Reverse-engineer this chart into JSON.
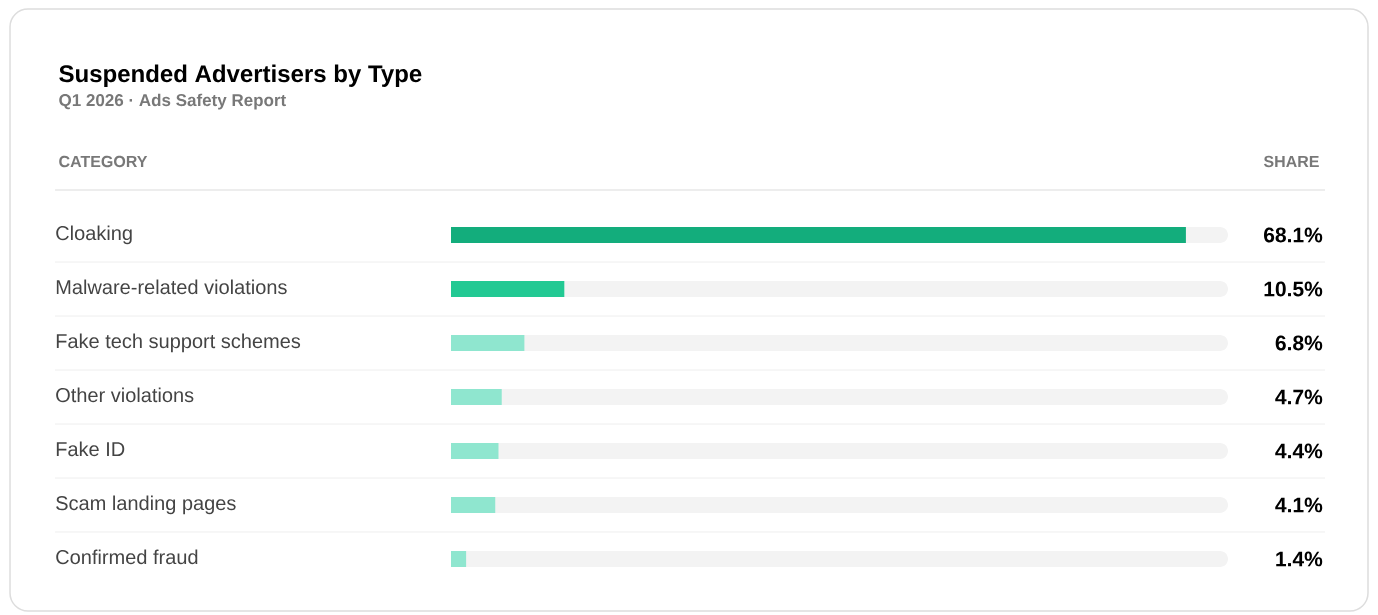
{
  "chart_data": {
    "type": "bar",
    "orientation": "horizontal",
    "title": "Suspended Advertisers by Type",
    "subtitle": "Q1 2026 · Ads Safety Report",
    "ylabel": "CATEGORY",
    "xlabel": "SHARE",
    "categories": [
      "Cloaking",
      "Malware-related violations",
      "Fake tech support schemes",
      "Other violations",
      "Fake ID",
      "Scam landing pages",
      "Confirmed fraud"
    ],
    "values": [
      68.1,
      10.5,
      6.8,
      4.7,
      4.4,
      4.1,
      1.4
    ],
    "colors": [
      "#13ad7c",
      "#22c993",
      "#8fe6cf",
      "#8fe6cf",
      "#8fe6cf",
      "#8fe6cf",
      "#8fe6cf"
    ],
    "value_labels": [
      "68.1%",
      "10.5%",
      "6.8%",
      "4.7%",
      "4.4%",
      "4.1%",
      "1.4%"
    ],
    "xlim": [
      0,
      72
    ]
  }
}
